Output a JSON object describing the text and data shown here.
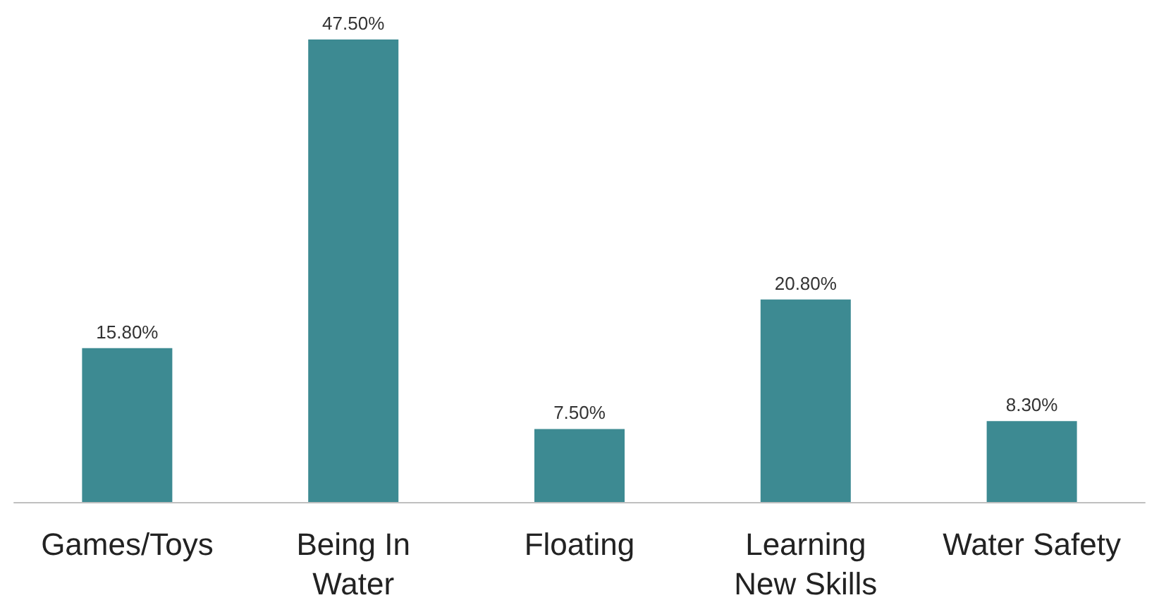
{
  "chart_data": {
    "type": "bar",
    "categories": [
      "Games/Toys",
      "Being In\nWater",
      "Floating",
      "Learning\nNew Skills",
      "Water Safety"
    ],
    "values": [
      15.8,
      47.5,
      7.5,
      20.8,
      8.3
    ],
    "value_labels": [
      "15.80%",
      "47.50%",
      "7.50%",
      "20.80%",
      "8.30%"
    ],
    "color": "#3d8a92"
  }
}
